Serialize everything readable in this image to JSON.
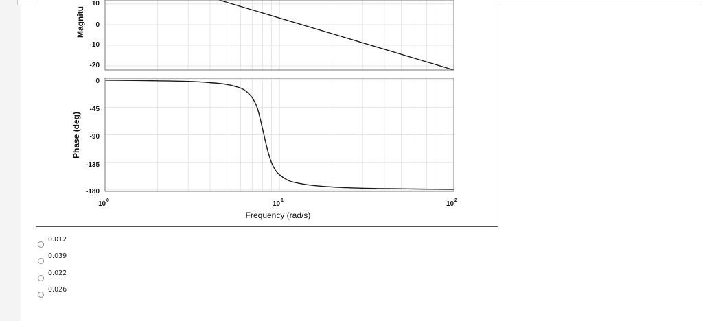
{
  "colors": {
    "curve": "#1a1a1a",
    "grid": "#dedede",
    "axis": "#555555"
  },
  "bode": {
    "magnitude_label": "Magnitu",
    "magnitude_ticks": [
      "10",
      "0",
      "-10",
      "-20"
    ],
    "phase_label": "Phase (deg)",
    "phase_ticks": [
      "0",
      "-45",
      "-90",
      "-135",
      "-180"
    ],
    "x_ticks": [
      {
        "base": "10",
        "exp": "0"
      },
      {
        "base": "10",
        "exp": "1"
      },
      {
        "base": "10",
        "exp": "2"
      }
    ],
    "xlabel": "Frequency  (rad/s)"
  },
  "chart_data": {
    "type": "line",
    "xscale": "log",
    "xlim": [
      1,
      100
    ],
    "magnitude": {
      "ylim": [
        -22,
        12
      ],
      "x": [
        4.5,
        100
      ],
      "y": [
        12,
        -22
      ]
    },
    "phase": {
      "ylim": [
        -180,
        0
      ],
      "x": [
        1,
        2,
        3,
        4,
        5,
        6,
        6.5,
        7,
        7.5,
        8,
        8.5,
        9,
        9.5,
        10,
        11,
        12,
        15,
        20,
        30,
        50,
        100
      ],
      "y": [
        -1,
        -2,
        -3,
        -5,
        -8,
        -14,
        -20,
        -30,
        -48,
        -80,
        -112,
        -135,
        -148,
        -155,
        -163,
        -167,
        -172,
        -175,
        -177,
        -178,
        -179
      ]
    }
  },
  "options": [
    {
      "label": "0.012"
    },
    {
      "label": "0.039"
    },
    {
      "label": "0.022"
    },
    {
      "label": "0.026"
    }
  ]
}
